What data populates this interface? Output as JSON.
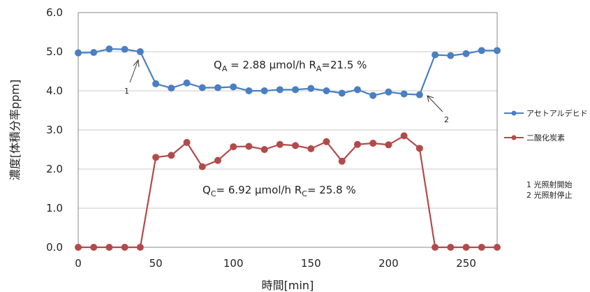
{
  "chart_data": {
    "type": "line",
    "xlabel": "時間[min]",
    "ylabel": "濃度[体積分率ppm]",
    "xlim": [
      0,
      270
    ],
    "ylim": [
      0,
      6
    ],
    "x_ticks": [
      "0",
      "50",
      "100",
      "150",
      "200",
      "250"
    ],
    "y_ticks": [
      "0.0",
      "1.0",
      "2.0",
      "3.0",
      "4.0",
      "5.0",
      "6.0"
    ],
    "grid": "horizontal",
    "legend_position": "right",
    "x": [
      0,
      10,
      20,
      30,
      40,
      50,
      60,
      70,
      80,
      90,
      100,
      110,
      120,
      130,
      140,
      150,
      160,
      170,
      180,
      190,
      200,
      210,
      220,
      230,
      240,
      250,
      260,
      270
    ],
    "series": [
      {
        "name": "アセトアルデヒド",
        "color": "#4a7fc1",
        "values": [
          4.97,
          4.98,
          5.07,
          5.06,
          5.0,
          4.18,
          4.07,
          4.2,
          4.08,
          4.08,
          4.1,
          4.0,
          4.0,
          4.03,
          4.03,
          4.06,
          4.0,
          3.94,
          4.03,
          3.88,
          3.97,
          3.92,
          3.9,
          4.92,
          4.9,
          4.95,
          5.03,
          5.03
        ]
      },
      {
        "name": "二酸化炭素",
        "color": "#b34a4a",
        "values": [
          0,
          0,
          0,
          0,
          0,
          2.3,
          2.35,
          2.68,
          2.06,
          2.22,
          2.57,
          2.58,
          2.5,
          2.63,
          2.6,
          2.52,
          2.7,
          2.2,
          2.63,
          2.66,
          2.62,
          2.85,
          2.53,
          0,
          0,
          0,
          0,
          0
        ]
      }
    ],
    "annotations": {
      "qa_q": "Q",
      "qa_sub": "A",
      "qa_val": " = 2.88 μmol/h  ",
      "ra_r": "R",
      "ra_sub": "A",
      "ra_val": "=21.5 %",
      "qc_q": "Q",
      "qc_sub": "C",
      "qc_val": "= 6.92 μmol/h  ",
      "rc_r": "R",
      "rc_sub": "C",
      "rc_val": "= 25.8 %",
      "arrow1": "1",
      "arrow2": "2"
    },
    "notes": [
      "1 光照射開始",
      "2 光照射停止"
    ]
  }
}
